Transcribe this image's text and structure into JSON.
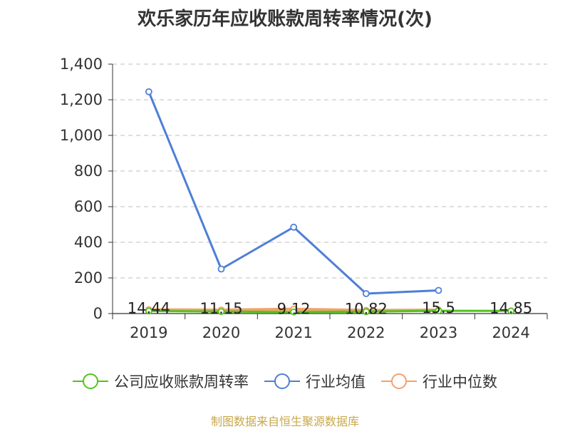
{
  "title": "欢乐家历年应收账款周转率情况(次)",
  "source": "制图数据来自恒生聚源数据库",
  "chart_data": {
    "type": "line",
    "categories": [
      "2019",
      "2020",
      "2021",
      "2022",
      "2023",
      "2024"
    ],
    "ylim": [
      0,
      1400
    ],
    "yticks": [
      0,
      200,
      400,
      600,
      800,
      1000,
      1200,
      1400
    ],
    "ytick_labels": [
      "0",
      "200",
      "400",
      "600",
      "800",
      "1,000",
      "1,200",
      "1,400"
    ],
    "grid": true,
    "legend_position": "bottom",
    "series": [
      {
        "name": "公司应收账款周转率",
        "color": "#52c41a",
        "values": [
          14.44,
          11.15,
          9.12,
          10.82,
          15.5,
          14.85
        ],
        "labels": [
          "14.44",
          "11.15",
          "9.12",
          "10.82",
          "15.5",
          "14.85"
        ]
      },
      {
        "name": "行业均值",
        "color": "#4e7fd6",
        "values": [
          1245,
          250,
          485,
          112,
          130,
          null
        ]
      },
      {
        "name": "行业中位数",
        "color": "#f5a06a",
        "values": [
          22,
          20,
          25,
          18,
          20,
          null
        ]
      }
    ]
  }
}
